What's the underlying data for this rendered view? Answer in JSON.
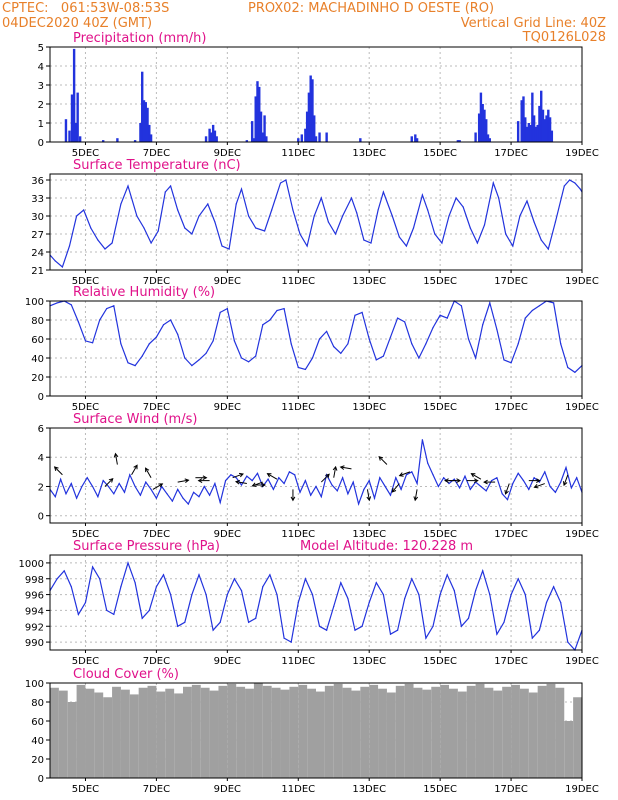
{
  "header": {
    "line1_left": "CPTEC:   061:53W-08:53S",
    "line1_right": "PROX02: MACHADINHO D OESTE (RO)",
    "line2_left": "04DEC2020 40Z (GMT)",
    "line2_right": "Vertical Grid Line: 40Z",
    "line3_right": "TQ0126L028"
  },
  "colors": {
    "header": "#e8802a",
    "title": "#e0128a",
    "line": "#2233dd",
    "cloud": "#a0a0a0",
    "grid": "#bbbbbb"
  },
  "chart_data": [
    {
      "type": "bar",
      "title": "Precipitation (mm/h)",
      "ylim": [
        0,
        5
      ],
      "yticks": [
        0,
        1,
        2,
        3,
        4,
        5
      ],
      "xlim": [
        4,
        19
      ],
      "xticks": [
        5,
        7,
        9,
        11,
        13,
        15,
        17,
        19
      ],
      "xticklabels": [
        "5DEC",
        "7DEC",
        "9DEC",
        "11DEC",
        "13DEC",
        "15DEC",
        "17DEC",
        "19DEC"
      ],
      "x": [
        4.45,
        4.55,
        4.62,
        4.68,
        4.72,
        4.78,
        4.85,
        5.5,
        5.9,
        6.4,
        6.55,
        6.6,
        6.65,
        6.7,
        6.75,
        6.8,
        6.85,
        8.4,
        8.5,
        8.55,
        8.6,
        8.65,
        8.7,
        9.55,
        9.7,
        9.75,
        9.8,
        9.85,
        9.9,
        9.95,
        10.0,
        10.05,
        10.1,
        11.0,
        11.1,
        11.2,
        11.25,
        11.3,
        11.35,
        11.4,
        11.45,
        11.5,
        11.6,
        11.8,
        12.75,
        14.2,
        14.3,
        14.35,
        15.5,
        15.55,
        16.0,
        16.1,
        16.15,
        16.2,
        16.25,
        16.3,
        16.35,
        16.4,
        17.2,
        17.3,
        17.35,
        17.4,
        17.45,
        17.5,
        17.55,
        17.6,
        17.65,
        17.7,
        17.75,
        17.8,
        17.85,
        17.9,
        17.95,
        18.0,
        18.05,
        18.1,
        18.15
      ],
      "values": [
        1.2,
        0.6,
        2.5,
        4.9,
        1.0,
        2.6,
        0.3,
        0.1,
        0.2,
        0.1,
        1.0,
        3.7,
        2.2,
        2.1,
        1.8,
        0.9,
        0.4,
        0.3,
        0.7,
        0.5,
        0.9,
        0.6,
        0.3,
        0.1,
        1.1,
        0.2,
        2.4,
        3.2,
        2.9,
        1.6,
        0.5,
        1.4,
        0.3,
        0.2,
        0.4,
        0.7,
        1.6,
        2.6,
        3.5,
        3.3,
        1.4,
        0.3,
        0.5,
        0.5,
        0.2,
        0.3,
        0.4,
        0.2,
        0.1,
        0.1,
        0.5,
        1.5,
        2.6,
        2.0,
        1.7,
        1.2,
        0.4,
        0.2,
        1.1,
        2.2,
        2.4,
        1.3,
        0.8,
        1.0,
        0.9,
        2.6,
        1.4,
        0.8,
        0.9,
        1.9,
        2.7,
        1.7,
        1.2,
        1.4,
        1.7,
        1.3,
        0.6
      ]
    },
    {
      "type": "line",
      "title": "Surface Temperature (nC)",
      "ylim": [
        21,
        37
      ],
      "yticks": [
        21,
        24,
        27,
        30,
        33,
        36
      ],
      "xlim": [
        4,
        19
      ],
      "xticks": [
        5,
        7,
        9,
        11,
        13,
        15,
        17,
        19
      ],
      "xticklabels": [
        "5DEC",
        "7DEC",
        "9DEC",
        "11DEC",
        "13DEC",
        "15DEC",
        "17DEC",
        "19DEC"
      ],
      "x": [
        4.0,
        4.15,
        4.35,
        4.55,
        4.75,
        4.95,
        5.15,
        5.35,
        5.55,
        5.75,
        6.0,
        6.2,
        6.45,
        6.65,
        6.85,
        7.05,
        7.25,
        7.4,
        7.6,
        7.8,
        8.0,
        8.2,
        8.45,
        8.65,
        8.85,
        9.05,
        9.25,
        9.4,
        9.6,
        9.8,
        10.05,
        10.25,
        10.5,
        10.65,
        10.85,
        11.05,
        11.25,
        11.45,
        11.65,
        11.85,
        12.05,
        12.25,
        12.5,
        12.65,
        12.85,
        13.05,
        13.25,
        13.4,
        13.65,
        13.85,
        14.05,
        14.25,
        14.5,
        14.65,
        14.85,
        15.05,
        15.25,
        15.45,
        15.65,
        15.85,
        16.05,
        16.25,
        16.5,
        16.65,
        16.85,
        17.05,
        17.25,
        17.45,
        17.65,
        17.85,
        18.05,
        18.25,
        18.5,
        18.65,
        18.8,
        18.95,
        19.0
      ],
      "values": [
        23.5,
        22.5,
        21.5,
        25.0,
        30.0,
        31.0,
        28.0,
        26.0,
        24.5,
        25.5,
        32.0,
        35.0,
        30.0,
        28.0,
        25.5,
        27.5,
        34.0,
        35.0,
        31.0,
        28.0,
        27.0,
        30.0,
        32.0,
        29.0,
        25.0,
        24.5,
        32.0,
        34.5,
        30.0,
        28.0,
        27.5,
        31.0,
        35.5,
        36.0,
        31.0,
        27.0,
        25.0,
        30.0,
        33.0,
        29.0,
        27.0,
        30.0,
        33.0,
        30.5,
        26.0,
        25.5,
        31.0,
        34.0,
        30.0,
        26.5,
        25.0,
        28.0,
        33.5,
        31.0,
        27.0,
        25.5,
        30.0,
        33.0,
        31.5,
        28.0,
        25.5,
        28.5,
        35.5,
        33.0,
        27.0,
        25.0,
        30.0,
        32.5,
        29.0,
        26.0,
        24.5,
        29.0,
        35.0,
        36.0,
        35.5,
        34.5,
        34.0
      ]
    },
    {
      "type": "line",
      "title": "Relative Humidity (%)",
      "ylim": [
        0,
        100
      ],
      "yticks": [
        0,
        20,
        40,
        60,
        80,
        100
      ],
      "xlim": [
        4,
        19
      ],
      "xticks": [
        5,
        7,
        9,
        11,
        13,
        15,
        17,
        19
      ],
      "xticklabels": [
        "5DEC",
        "7DEC",
        "9DEC",
        "11DEC",
        "13DEC",
        "15DEC",
        "17DEC",
        "19DEC"
      ],
      "x": [
        4.0,
        4.2,
        4.4,
        4.6,
        4.8,
        5.0,
        5.2,
        5.4,
        5.6,
        5.8,
        6.0,
        6.2,
        6.4,
        6.6,
        6.8,
        7.0,
        7.2,
        7.4,
        7.6,
        7.8,
        8.0,
        8.2,
        8.4,
        8.6,
        8.8,
        9.0,
        9.2,
        9.4,
        9.6,
        9.8,
        10.0,
        10.2,
        10.4,
        10.6,
        10.8,
        11.0,
        11.2,
        11.4,
        11.6,
        11.8,
        12.0,
        12.2,
        12.4,
        12.6,
        12.8,
        13.0,
        13.2,
        13.4,
        13.6,
        13.8,
        14.0,
        14.2,
        14.4,
        14.6,
        14.8,
        15.0,
        15.2,
        15.4,
        15.6,
        15.8,
        16.0,
        16.2,
        16.4,
        16.6,
        16.8,
        17.0,
        17.2,
        17.4,
        17.6,
        17.8,
        18.0,
        18.2,
        18.4,
        18.6,
        18.8,
        19.0
      ],
      "values": [
        95,
        98,
        100,
        96,
        78,
        58,
        56,
        80,
        92,
        95,
        55,
        35,
        32,
        42,
        55,
        62,
        75,
        80,
        65,
        40,
        32,
        38,
        45,
        58,
        88,
        92,
        58,
        40,
        36,
        42,
        75,
        80,
        90,
        92,
        55,
        30,
        28,
        40,
        60,
        68,
        52,
        45,
        55,
        85,
        88,
        60,
        38,
        42,
        62,
        82,
        78,
        55,
        40,
        55,
        72,
        85,
        82,
        100,
        95,
        60,
        40,
        75,
        98,
        70,
        38,
        35,
        55,
        82,
        90,
        95,
        100,
        98,
        55,
        30,
        25,
        32
      ]
    },
    {
      "type": "line",
      "title": "Surface Wind (m/s)",
      "ylim": [
        -0.5,
        6
      ],
      "yticks": [
        0,
        2,
        4,
        6
      ],
      "xlim": [
        4,
        19
      ],
      "xticks": [
        5,
        7,
        9,
        11,
        13,
        15,
        17,
        19
      ],
      "xticklabels": [
        "5DEC",
        "7DEC",
        "9DEC",
        "11DEC",
        "13DEC",
        "15DEC",
        "17DEC",
        "19DEC"
      ],
      "x": [
        4.0,
        4.15,
        4.3,
        4.45,
        4.6,
        4.75,
        4.9,
        5.05,
        5.2,
        5.35,
        5.5,
        5.65,
        5.8,
        5.95,
        6.1,
        6.25,
        6.4,
        6.55,
        6.7,
        6.85,
        7.0,
        7.15,
        7.3,
        7.45,
        7.6,
        7.75,
        7.9,
        8.05,
        8.2,
        8.35,
        8.5,
        8.65,
        8.8,
        8.95,
        9.1,
        9.25,
        9.4,
        9.55,
        9.7,
        9.85,
        10.0,
        10.15,
        10.3,
        10.45,
        10.6,
        10.75,
        10.9,
        11.05,
        11.2,
        11.35,
        11.5,
        11.65,
        11.8,
        11.95,
        12.1,
        12.25,
        12.4,
        12.55,
        12.7,
        12.85,
        13.0,
        13.15,
        13.3,
        13.45,
        13.6,
        13.75,
        13.9,
        14.05,
        14.2,
        14.35,
        14.5,
        14.65,
        14.8,
        14.95,
        15.1,
        15.25,
        15.4,
        15.55,
        15.7,
        15.85,
        16.0,
        16.15,
        16.3,
        16.45,
        16.6,
        16.75,
        16.9,
        17.05,
        17.2,
        17.35,
        17.5,
        17.65,
        17.8,
        17.95,
        18.1,
        18.25,
        18.4,
        18.55,
        18.7,
        18.85,
        19.0
      ],
      "values": [
        1.8,
        1.3,
        2.5,
        1.5,
        2.2,
        1.2,
        2.0,
        2.6,
        2.0,
        1.3,
        2.4,
        2.0,
        1.5,
        2.2,
        1.6,
        2.8,
        2.0,
        1.4,
        2.3,
        1.8,
        1.2,
        2.0,
        1.5,
        1.0,
        1.8,
        1.2,
        0.8,
        1.6,
        1.3,
        2.0,
        1.4,
        2.2,
        0.9,
        2.4,
        2.8,
        2.6,
        2.1,
        2.7,
        2.4,
        2.9,
        2.0,
        2.5,
        1.8,
        2.6,
        2.2,
        3.0,
        2.8,
        1.6,
        2.4,
        1.4,
        2.0,
        1.3,
        2.8,
        2.1,
        1.7,
        2.6,
        1.5,
        2.3,
        0.8,
        1.8,
        2.4,
        1.2,
        2.6,
        2.0,
        1.4,
        2.6,
        1.8,
        2.8,
        3.0,
        2.2,
        5.2,
        3.6,
        2.8,
        2.0,
        2.6,
        2.2,
        2.5,
        1.9,
        2.7,
        1.8,
        2.3,
        2.0,
        1.7,
        2.4,
        2.6,
        1.5,
        1.1,
        2.2,
        2.9,
        2.4,
        1.8,
        2.6,
        2.3,
        3.0,
        2.0,
        1.6,
        2.3,
        3.3,
        1.9,
        2.6,
        1.6
      ],
      "arrows": [
        {
          "x": 4.35,
          "y": 2.8,
          "dir": 135
        },
        {
          "x": 5.55,
          "y": 2.0,
          "dir": 45
        },
        {
          "x": 5.9,
          "y": 3.5,
          "dir": 100
        },
        {
          "x": 6.3,
          "y": 2.8,
          "dir": 60
        },
        {
          "x": 6.85,
          "y": 2.6,
          "dir": 120
        },
        {
          "x": 6.9,
          "y": 1.8,
          "dir": 30
        },
        {
          "x": 7.6,
          "y": 2.3,
          "dir": 10
        },
        {
          "x": 8.1,
          "y": 2.6,
          "dir": 0
        },
        {
          "x": 8.5,
          "y": 2.4,
          "dir": 180
        },
        {
          "x": 9.15,
          "y": 2.6,
          "dir": 20
        },
        {
          "x": 9.55,
          "y": 2.2,
          "dir": 170
        },
        {
          "x": 9.75,
          "y": 2.1,
          "dir": 0
        },
        {
          "x": 10.0,
          "y": 2.3,
          "dir": 200
        },
        {
          "x": 10.4,
          "y": 2.5,
          "dir": 150
        },
        {
          "x": 10.85,
          "y": 1.8,
          "dir": 270
        },
        {
          "x": 11.65,
          "y": 2.3,
          "dir": 45
        },
        {
          "x": 12.0,
          "y": 2.6,
          "dir": 80
        },
        {
          "x": 12.5,
          "y": 3.2,
          "dir": 170
        },
        {
          "x": 12.95,
          "y": 1.8,
          "dir": 280
        },
        {
          "x": 13.5,
          "y": 3.5,
          "dir": 135
        },
        {
          "x": 13.85,
          "y": 2.2,
          "dir": 230
        },
        {
          "x": 14.15,
          "y": 3.0,
          "dir": 200
        },
        {
          "x": 14.35,
          "y": 1.8,
          "dir": 260
        },
        {
          "x": 15.25,
          "y": 2.4,
          "dir": 0
        },
        {
          "x": 15.45,
          "y": 2.4,
          "dir": 180
        },
        {
          "x": 15.75,
          "y": 2.4,
          "dir": 0
        },
        {
          "x": 16.15,
          "y": 2.5,
          "dir": 150
        },
        {
          "x": 16.55,
          "y": 2.3,
          "dir": 180
        },
        {
          "x": 16.95,
          "y": 2.2,
          "dir": 250
        },
        {
          "x": 17.5,
          "y": 2.4,
          "dir": 0
        },
        {
          "x": 17.95,
          "y": 2.2,
          "dir": 200
        },
        {
          "x": 18.6,
          "y": 2.8,
          "dir": 250
        }
      ]
    },
    {
      "type": "line",
      "title": "Surface Pressure (hPa)",
      "subtitle": "Model Altitude: 120.228  m",
      "ylim": [
        989,
        1001
      ],
      "yticks": [
        990,
        992,
        994,
        996,
        998,
        1000
      ],
      "xlim": [
        4,
        19
      ],
      "xticks": [
        5,
        7,
        9,
        11,
        13,
        15,
        17,
        19
      ],
      "xticklabels": [
        "5DEC",
        "7DEC",
        "9DEC",
        "11DEC",
        "13DEC",
        "15DEC",
        "17DEC",
        "19DEC"
      ],
      "x": [
        4.0,
        4.2,
        4.4,
        4.6,
        4.8,
        5.0,
        5.2,
        5.4,
        5.6,
        5.8,
        6.0,
        6.2,
        6.4,
        6.6,
        6.8,
        7.0,
        7.2,
        7.4,
        7.6,
        7.8,
        8.0,
        8.2,
        8.4,
        8.6,
        8.8,
        9.0,
        9.2,
        9.4,
        9.6,
        9.8,
        10.0,
        10.2,
        10.4,
        10.6,
        10.8,
        11.0,
        11.2,
        11.4,
        11.6,
        11.8,
        12.0,
        12.2,
        12.4,
        12.6,
        12.8,
        13.0,
        13.2,
        13.4,
        13.6,
        13.8,
        14.0,
        14.2,
        14.4,
        14.6,
        14.8,
        15.0,
        15.2,
        15.4,
        15.6,
        15.8,
        16.0,
        16.2,
        16.4,
        16.6,
        16.8,
        17.0,
        17.2,
        17.4,
        17.6,
        17.8,
        18.0,
        18.2,
        18.4,
        18.6,
        18.8,
        19.0
      ],
      "values": [
        996.5,
        998.0,
        999.0,
        997.0,
        993.5,
        995.0,
        999.5,
        998.0,
        994.0,
        993.5,
        997.0,
        1000.0,
        997.5,
        993.0,
        994.0,
        997.0,
        998.5,
        996.0,
        992.0,
        992.5,
        996.0,
        998.5,
        996.0,
        991.5,
        992.5,
        996.0,
        998.0,
        996.5,
        992.5,
        993.0,
        997.0,
        998.5,
        996.0,
        990.5,
        990.0,
        995.0,
        998.0,
        996.0,
        992.0,
        991.5,
        994.5,
        997.5,
        995.5,
        991.5,
        992.0,
        995.0,
        997.5,
        996.0,
        991.0,
        991.5,
        995.5,
        998.0,
        996.0,
        990.5,
        992.0,
        996.0,
        998.5,
        996.5,
        992.0,
        993.0,
        996.5,
        999.0,
        996.0,
        991.0,
        992.5,
        996.0,
        998.0,
        996.0,
        990.5,
        991.5,
        995.0,
        997.0,
        995.0,
        990.0,
        989.0,
        991.5
      ]
    },
    {
      "type": "bar",
      "title": "Cloud Cover (%)",
      "ylim": [
        0,
        100
      ],
      "yticks": [
        0,
        20,
        40,
        60,
        80,
        100
      ],
      "xlim": [
        4,
        19
      ],
      "xticks": [
        5,
        7,
        9,
        11,
        13,
        15,
        17,
        19
      ],
      "xticklabels": [
        "5DEC",
        "7DEC",
        "9DEC",
        "11DEC",
        "13DEC",
        "15DEC",
        "17DEC",
        "19DEC"
      ],
      "x": [
        4.0,
        4.25,
        4.5,
        4.75,
        5.0,
        5.25,
        5.5,
        5.75,
        6.0,
        6.25,
        6.5,
        6.75,
        7.0,
        7.25,
        7.5,
        7.75,
        8.0,
        8.25,
        8.5,
        8.75,
        9.0,
        9.25,
        9.5,
        9.75,
        10.0,
        10.25,
        10.5,
        10.75,
        11.0,
        11.25,
        11.5,
        11.75,
        12.0,
        12.25,
        12.5,
        12.75,
        13.0,
        13.25,
        13.5,
        13.75,
        14.0,
        14.25,
        14.5,
        14.75,
        15.0,
        15.25,
        15.5,
        15.75,
        16.0,
        16.25,
        16.5,
        16.75,
        17.0,
        17.25,
        17.5,
        17.75,
        18.0,
        18.25,
        18.5,
        18.75
      ],
      "values": [
        95,
        92,
        80,
        98,
        94,
        90,
        85,
        96,
        93,
        88,
        95,
        97,
        91,
        94,
        89,
        96,
        98,
        95,
        92,
        97,
        99,
        96,
        94,
        100,
        97,
        95,
        93,
        96,
        98,
        94,
        91,
        97,
        99,
        95,
        92,
        96,
        98,
        94,
        90,
        97,
        99,
        95,
        93,
        96,
        98,
        94,
        91,
        97,
        99,
        95,
        92,
        96,
        98,
        94,
        90,
        97,
        99,
        95,
        60,
        85
      ]
    }
  ]
}
